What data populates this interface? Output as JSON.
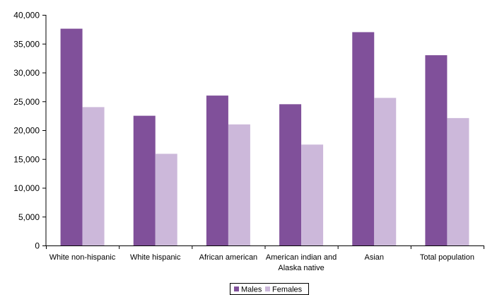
{
  "chart_data": {
    "type": "bar",
    "title": "",
    "xlabel": "",
    "ylabel": "",
    "ylim": [
      0,
      40000
    ],
    "yticks": [
      0,
      5000,
      10000,
      15000,
      20000,
      25000,
      30000,
      35000,
      40000
    ],
    "ytick_labels": [
      "0",
      "5,000",
      "10,000",
      "15,000",
      "20,000",
      "25,000",
      "30,000",
      "35,000",
      "40,000"
    ],
    "grid": false,
    "legend_position": "bottom-center",
    "categories": [
      [
        "White non-hispanic"
      ],
      [
        "White hispanic"
      ],
      [
        "African american"
      ],
      [
        "American indian and",
        "Alaska native"
      ],
      [
        "Asian"
      ],
      [
        "Total population"
      ]
    ],
    "series": [
      {
        "name": "Males",
        "color": "#80509a",
        "values": [
          37600,
          22500,
          26000,
          24500,
          37000,
          33000
        ]
      },
      {
        "name": "Females",
        "color": "#ccb8da",
        "values": [
          24000,
          15900,
          21000,
          17500,
          25600,
          22100
        ]
      }
    ]
  }
}
